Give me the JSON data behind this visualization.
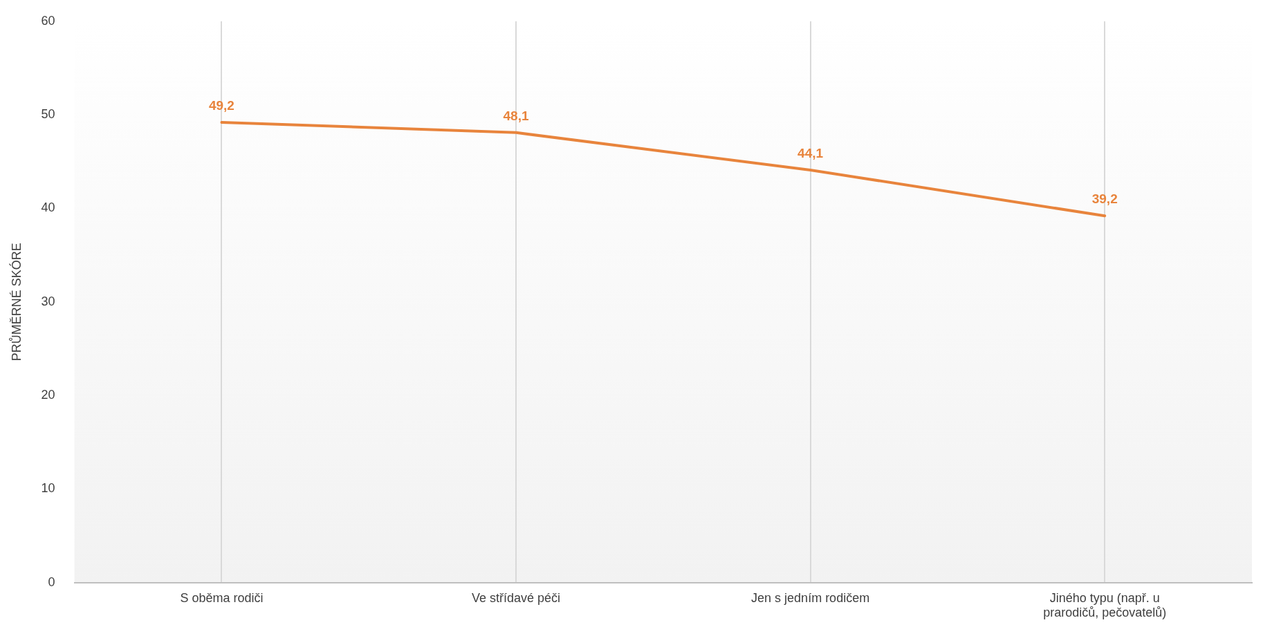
{
  "chart_data": {
    "type": "line",
    "ylabel": "PRŮMĚRNÉ SKÓRE",
    "categories": [
      "S oběma rodiči",
      "Ve střídavé péči",
      "Jen s jedním rodičem",
      "Jiného typu (např. u prarodičů, pečovatelů)"
    ],
    "series": [
      {
        "color": "#e8843c",
        "values": [
          49.2,
          48.1,
          44.1,
          39.2
        ]
      }
    ],
    "value_labels": [
      "49,2",
      "48,1",
      "44,1",
      "39,2"
    ],
    "ylim": [
      0,
      60
    ],
    "yticks": [
      0,
      10,
      20,
      30,
      40,
      50,
      60
    ],
    "grid": "x",
    "legend": false,
    "marker": "none",
    "line_style": "solid"
  }
}
